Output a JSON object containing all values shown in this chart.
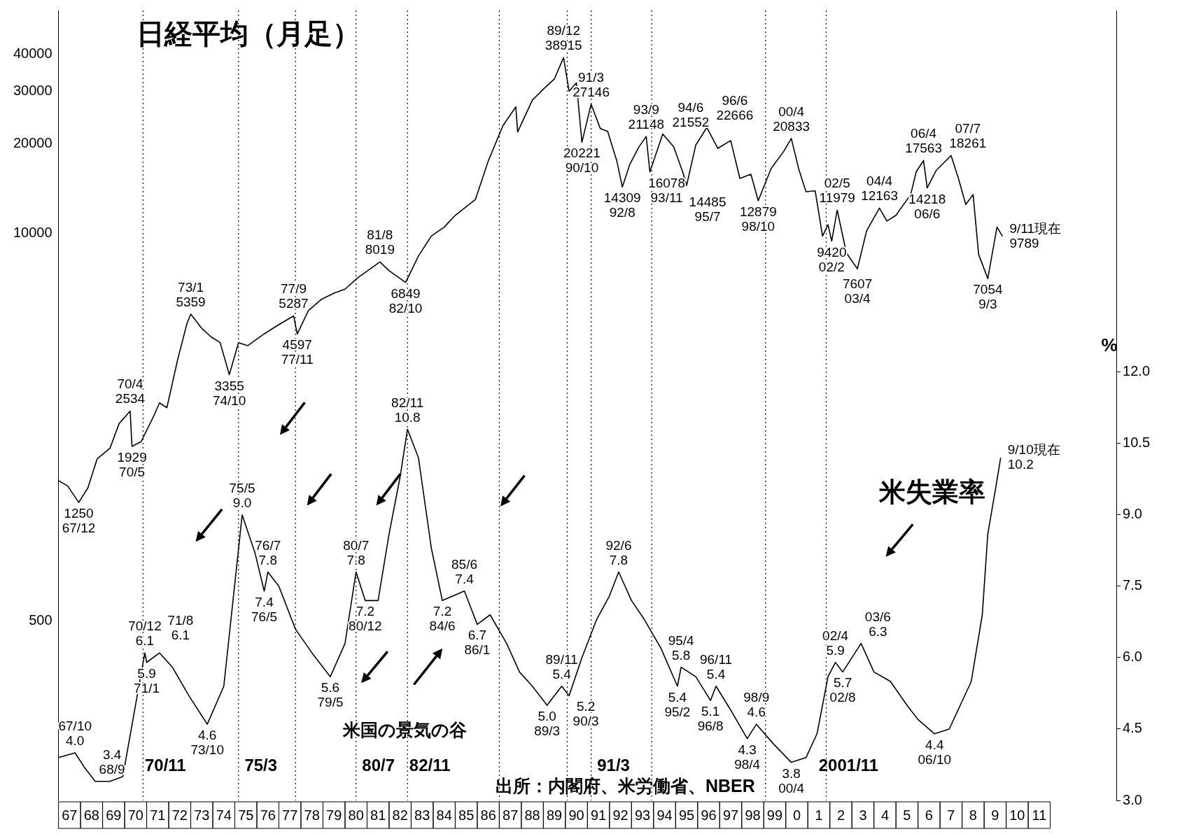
{
  "chart_data": {
    "type": "line",
    "title": "日経平均（月足）",
    "y2label": "%",
    "annotations": [
      "米国の景気の谷",
      "出所：内閣府、米労働省、NBER"
    ],
    "xlim": [
      "1967-01",
      "2015-01"
    ],
    "xticks": [
      {
        "value": "1967-07",
        "label": "67"
      },
      {
        "value": "1968-07",
        "label": "68"
      },
      {
        "value": "1969-07",
        "label": "69"
      },
      {
        "value": "1970-07",
        "label": "70"
      },
      {
        "value": "1971-07",
        "label": "71"
      },
      {
        "value": "1972-07",
        "label": "72"
      },
      {
        "value": "1973-07",
        "label": "73"
      },
      {
        "value": "1974-07",
        "label": "74"
      },
      {
        "value": "1975-07",
        "label": "75"
      },
      {
        "value": "1976-07",
        "label": "76"
      },
      {
        "value": "1977-07",
        "label": "77"
      },
      {
        "value": "1978-07",
        "label": "78"
      },
      {
        "value": "1979-07",
        "label": "79"
      },
      {
        "value": "1980-07",
        "label": "80"
      },
      {
        "value": "1981-07",
        "label": "81"
      },
      {
        "value": "1982-07",
        "label": "82"
      },
      {
        "value": "1983-07",
        "label": "83"
      },
      {
        "value": "1984-07",
        "label": "84"
      },
      {
        "value": "1985-07",
        "label": "85"
      },
      {
        "value": "1986-07",
        "label": "86"
      },
      {
        "value": "1987-07",
        "label": "87"
      },
      {
        "value": "1988-07",
        "label": "88"
      },
      {
        "value": "1989-07",
        "label": "89"
      },
      {
        "value": "1990-07",
        "label": "90"
      },
      {
        "value": "1991-07",
        "label": "91"
      },
      {
        "value": "1992-07",
        "label": "92"
      },
      {
        "value": "1993-07",
        "label": "93"
      },
      {
        "value": "1994-07",
        "label": "94"
      },
      {
        "value": "1995-07",
        "label": "95"
      },
      {
        "value": "1996-07",
        "label": "96"
      },
      {
        "value": "1997-07",
        "label": "97"
      },
      {
        "value": "1998-07",
        "label": "98"
      },
      {
        "value": "1999-07",
        "label": "99"
      },
      {
        "value": "2000-07",
        "label": "0"
      },
      {
        "value": "2001-07",
        "label": "1"
      },
      {
        "value": "2002-07",
        "label": "2"
      },
      {
        "value": "2003-07",
        "label": "3"
      },
      {
        "value": "2004-07",
        "label": "4"
      },
      {
        "value": "2005-07",
        "label": "5"
      },
      {
        "value": "2006-07",
        "label": "6"
      },
      {
        "value": "2007-07",
        "label": "7"
      },
      {
        "value": "2008-07",
        "label": "8"
      },
      {
        "value": "2009-07",
        "label": "9"
      },
      {
        "value": "2010-07",
        "label": "10"
      },
      {
        "value": "2011-07",
        "label": "11"
      }
    ],
    "ylim": [
      125,
      56000
    ],
    "yticks": [
      500,
      10000,
      20000,
      30000,
      40000
    ],
    "log": "y",
    "y2lim": [
      3,
      19.6
    ],
    "y2ticks": [
      {
        "value": 3,
        "label": "3.0"
      },
      {
        "value": 4.5,
        "label": "4.5"
      },
      {
        "value": 6,
        "label": "6.0"
      },
      {
        "value": 7.5,
        "label": "7.5"
      },
      {
        "value": 9,
        "label": "9.0"
      },
      {
        "value": 10.5,
        "label": "10.5"
      },
      {
        "value": 12,
        "label": "12.0"
      }
    ],
    "grid": false,
    "legend": false,
    "marker": "none",
    "line_style": "solid",
    "ref_lines": [
      {
        "axis": "x",
        "value": "1970-11",
        "label": "70/11",
        "line_style": "dotted"
      },
      {
        "axis": "x",
        "value": "1975-03",
        "label": "75/3",
        "line_style": "dotted"
      },
      {
        "axis": "x",
        "value": "1977-10",
        "line_style": "dotted"
      },
      {
        "axis": "x",
        "value": "1980-07",
        "label": "80/7",
        "line_style": "dotted"
      },
      {
        "axis": "x",
        "value": "1982-11",
        "label": "82/11",
        "line_style": "dotted"
      },
      {
        "axis": "x",
        "value": "1987-01",
        "line_style": "dotted"
      },
      {
        "axis": "x",
        "value": "1990-02",
        "line_style": "dotted"
      },
      {
        "axis": "x",
        "value": "1991-03",
        "label": "91/3",
        "line_style": "dotted"
      },
      {
        "axis": "x",
        "value": "1993-12",
        "line_style": "dotted"
      },
      {
        "axis": "x",
        "value": "1999-02",
        "line_style": "dotted"
      },
      {
        "axis": "x",
        "value": "2001-11",
        "label": "2001/11",
        "line_style": "dotted"
      }
    ],
    "series": [
      {
        "color": "#000000",
        "x": [
          "1967-01",
          "1967-06",
          "1967-12",
          "1968-05",
          "1968-10",
          "1969-05",
          "1969-10",
          "1970-04",
          "1970-05",
          "1970-10",
          "1971-05",
          "1971-08",
          "1971-12",
          "1972-06",
          "1972-11",
          "1973-01",
          "1973-07",
          "1973-12",
          "1974-05",
          "1974-10",
          "1975-03",
          "1975-08",
          "1976-05",
          "1976-12",
          "1977-09",
          "1977-11",
          "1978-05",
          "1978-12",
          "1979-07",
          "1980-01",
          "1980-08",
          "1981-08",
          "1982-01",
          "1982-10",
          "1983-05",
          "1983-12",
          "1984-07",
          "1985-01",
          "1985-12",
          "1986-07",
          "1987-03",
          "1987-10",
          "1987-11",
          "1988-07",
          "1989-01",
          "1989-07",
          "1989-12",
          "1990-03",
          "1990-07",
          "1990-10",
          "1991-03",
          "1991-08",
          "1991-12",
          "1992-05",
          "1992-08",
          "1992-12",
          "1993-05",
          "1993-09",
          "1993-11",
          "1994-06",
          "1994-12",
          "1995-05",
          "1995-07",
          "1995-12",
          "1996-06",
          "1996-12",
          "1997-07",
          "1997-12",
          "1998-06",
          "1998-10",
          "1999-05",
          "1999-12",
          "2000-04",
          "2000-08",
          "2000-12",
          "2001-05",
          "2001-09",
          "2001-12",
          "2002-02",
          "2002-05",
          "2002-10",
          "2003-04",
          "2003-09",
          "2004-04",
          "2004-08",
          "2005-01",
          "2005-09",
          "2005-12",
          "2006-04",
          "2006-06",
          "2006-11",
          "2007-07",
          "2007-11",
          "2008-03",
          "2008-07",
          "2008-10",
          "2009-03",
          "2009-08",
          "2009-11"
        ],
        "values": [
          1480,
          1420,
          1250,
          1400,
          1750,
          1900,
          2300,
          2534,
          1929,
          2000,
          2450,
          2700,
          2600,
          3800,
          5000,
          5359,
          4800,
          4500,
          4300,
          3355,
          4300,
          4200,
          4600,
          4900,
          5287,
          4597,
          5500,
          6000,
          6300,
          6500,
          7100,
          8019,
          7500,
          6849,
          8400,
          9800,
          10500,
          11500,
          13000,
          17500,
          23000,
          26600,
          21900,
          28000,
          30500,
          33000,
          38915,
          30000,
          32000,
          20221,
          27146,
          22500,
          22000,
          17500,
          14309,
          17000,
          19500,
          21148,
          16078,
          21552,
          19500,
          16000,
          14485,
          19800,
          22666,
          19300,
          20500,
          15300,
          15800,
          12879,
          16500,
          18900,
          20833,
          16500,
          13800,
          13900,
          9800,
          10700,
          9420,
          11979,
          8600,
          7607,
          10200,
          12163,
          11000,
          11500,
          13500,
          16100,
          17563,
          14218,
          16300,
          18261,
          15300,
          12500,
          13500,
          8500,
          7054,
          10500,
          9789
        ],
        "value_labels": [
          null,
          null,
          "1250\n67/12",
          null,
          null,
          null,
          null,
          "70/4\n2534",
          "1929\n70/5",
          null,
          null,
          null,
          null,
          null,
          null,
          "73/1\n5359",
          null,
          null,
          null,
          "3355\n74/10",
          null,
          null,
          null,
          null,
          "77/9\n5287",
          "4597\n77/11",
          null,
          null,
          null,
          null,
          null,
          "81/8\n8019",
          null,
          "6849\n82/10",
          null,
          null,
          null,
          null,
          null,
          null,
          null,
          null,
          null,
          null,
          null,
          null,
          "89/12\n38915",
          null,
          null,
          "20221\n90/10",
          "91/3\n27146",
          null,
          null,
          null,
          "14309\n92/8",
          null,
          null,
          "93/9\n21148",
          "16078\n93/11",
          "94/6\n21552",
          null,
          null,
          "14485\n95/7",
          null,
          "96/6\n22666",
          null,
          null,
          null,
          null,
          "12879\n98/10",
          null,
          null,
          "00/4\n20833",
          null,
          null,
          null,
          null,
          null,
          "9420\n02/2",
          "02/5\n11979",
          null,
          "7607\n03/4",
          null,
          "04/4\n12163",
          null,
          null,
          null,
          null,
          "06/4\n17563",
          "14218\n06/6",
          null,
          "07/7\n18261",
          null,
          null,
          null,
          null,
          "7054\n9/3",
          null,
          "9/11現在\n9789"
        ]
      },
      {
        "name": "米失業率",
        "axis": "y2",
        "color": "#000000",
        "x": [
          "1967-01",
          "1967-10",
          "1968-03",
          "1968-09",
          "1969-05",
          "1969-12",
          "1970-06",
          "1970-12",
          "1971-01",
          "1971-08",
          "1972-03",
          "1972-12",
          "1973-10",
          "1974-07",
          "1974-12",
          "1975-05",
          "1975-12",
          "1976-05",
          "1976-07",
          "1977-01",
          "1977-10",
          "1978-07",
          "1979-05",
          "1980-01",
          "1980-07",
          "1980-12",
          "1981-07",
          "1982-01",
          "1982-07",
          "1982-11",
          "1983-05",
          "1983-12",
          "1984-06",
          "1985-06",
          "1986-01",
          "1986-08",
          "1987-05",
          "1987-12",
          "1988-07",
          "1989-03",
          "1989-11",
          "1990-03",
          "1990-10",
          "1991-06",
          "1992-01",
          "1992-06",
          "1993-01",
          "1993-08",
          "1994-05",
          "1995-02",
          "1995-04",
          "1995-12",
          "1996-08",
          "1996-11",
          "1997-07",
          "1998-04",
          "1998-09",
          "1999-06",
          "2000-04",
          "2000-12",
          "2001-06",
          "2001-12",
          "2002-04",
          "2002-08",
          "2003-06",
          "2004-01",
          "2004-10",
          "2005-07",
          "2006-01",
          "2006-10",
          "2007-06",
          "2007-12",
          "2008-06",
          "2008-12",
          "2009-03",
          "2009-07",
          "2009-10"
        ],
        "values": [
          3.9,
          4.0,
          3.7,
          3.4,
          3.4,
          3.5,
          4.8,
          6.1,
          5.9,
          6.1,
          5.8,
          5.2,
          4.6,
          5.4,
          7.2,
          9.0,
          8.2,
          7.4,
          7.8,
          7.5,
          6.6,
          6.1,
          5.6,
          6.3,
          7.8,
          7.2,
          7.2,
          8.6,
          9.8,
          10.8,
          10.2,
          8.3,
          7.2,
          7.4,
          6.7,
          6.9,
          6.3,
          5.7,
          5.4,
          5.0,
          5.4,
          5.2,
          6.0,
          6.8,
          7.3,
          7.8,
          7.2,
          6.8,
          6.2,
          5.4,
          5.8,
          5.6,
          5.1,
          5.4,
          4.9,
          4.3,
          4.6,
          4.2,
          3.8,
          3.9,
          4.4,
          5.6,
          5.9,
          5.7,
          6.3,
          5.7,
          5.5,
          5.0,
          4.7,
          4.4,
          4.5,
          5.0,
          5.5,
          6.9,
          8.6,
          9.5,
          10.2
        ],
        "value_labels": [
          null,
          "67/10\n4.0",
          null,
          "3.4\n68/9",
          null,
          null,
          null,
          "70/12\n6.1",
          "5.9\n71/1",
          "71/8\n6.1",
          null,
          null,
          "4.6\n73/10",
          null,
          null,
          "75/5\n9.0",
          null,
          "7.4\n76/5",
          "76/7\n7.8",
          null,
          null,
          null,
          "5.6\n79/5",
          null,
          "80/7\n7.8",
          "7.2\n80/12",
          null,
          null,
          null,
          "82/11\n10.8",
          null,
          null,
          "7.2\n84/6",
          "85/6\n7.4",
          "6.7\n86/1",
          null,
          null,
          null,
          null,
          "5.0\n89/3",
          "89/11\n5.4",
          "5.2\n90/3",
          null,
          null,
          null,
          "92/6\n7.8",
          null,
          null,
          null,
          "5.4\n95/2",
          "95/4\n5.8",
          null,
          "5.1\n96/8",
          "96/11\n5.4",
          null,
          "4.3\n98/4",
          "98/9\n4.6",
          null,
          "3.8\n00/4",
          null,
          null,
          null,
          "02/4\n5.9",
          "5.7\n02/8",
          "03/6\n6.3",
          null,
          null,
          null,
          null,
          "4.4\n06/10",
          null,
          null,
          null,
          null,
          null,
          null,
          "9/10現在\n10.2"
        ]
      }
    ]
  }
}
